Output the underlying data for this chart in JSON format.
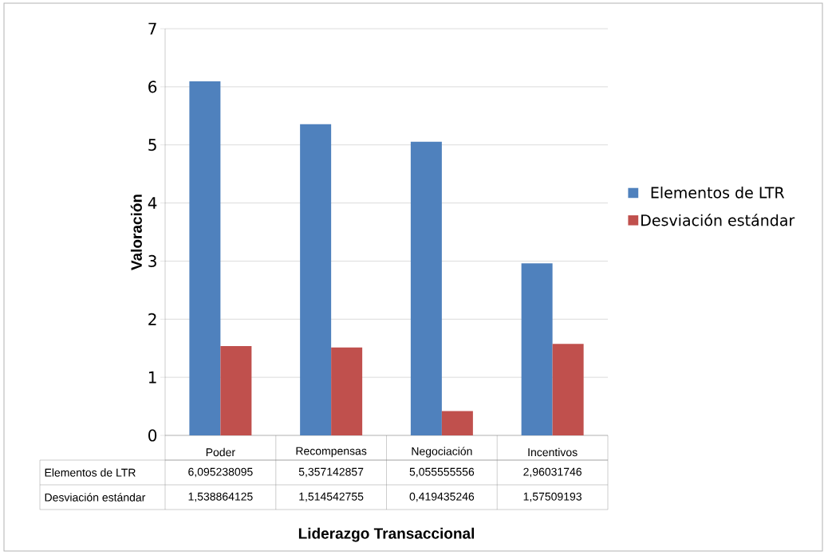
{
  "chart_data": {
    "type": "bar",
    "xlabel": "Liderazgo Transaccional",
    "ylabel": "Valoración",
    "categories": [
      "Poder",
      "Recompensas",
      "Negociación",
      "Incentivos"
    ],
    "series": [
      {
        "name": "Elementos de LTR",
        "color": "#4f81bd",
        "values": [
          6.095238095,
          5.357142857,
          5.055555556,
          2.96031746
        ],
        "value_labels": [
          "6,095238095",
          "5,357142857",
          "5,055555556",
          "2,96031746"
        ]
      },
      {
        "name": "Desviación estándar",
        "color": "#c0504d",
        "values": [
          1.538864125,
          1.514542755,
          0.419435246,
          1.57509193
        ],
        "value_labels": [
          "1,538864125",
          "1,514542755",
          "0,419435246",
          "1,57509193"
        ]
      }
    ],
    "ylim": [
      0,
      7
    ],
    "yticks": [
      0,
      1,
      2,
      3,
      4,
      5,
      6,
      7
    ],
    "grid": "y",
    "legend": "right"
  }
}
